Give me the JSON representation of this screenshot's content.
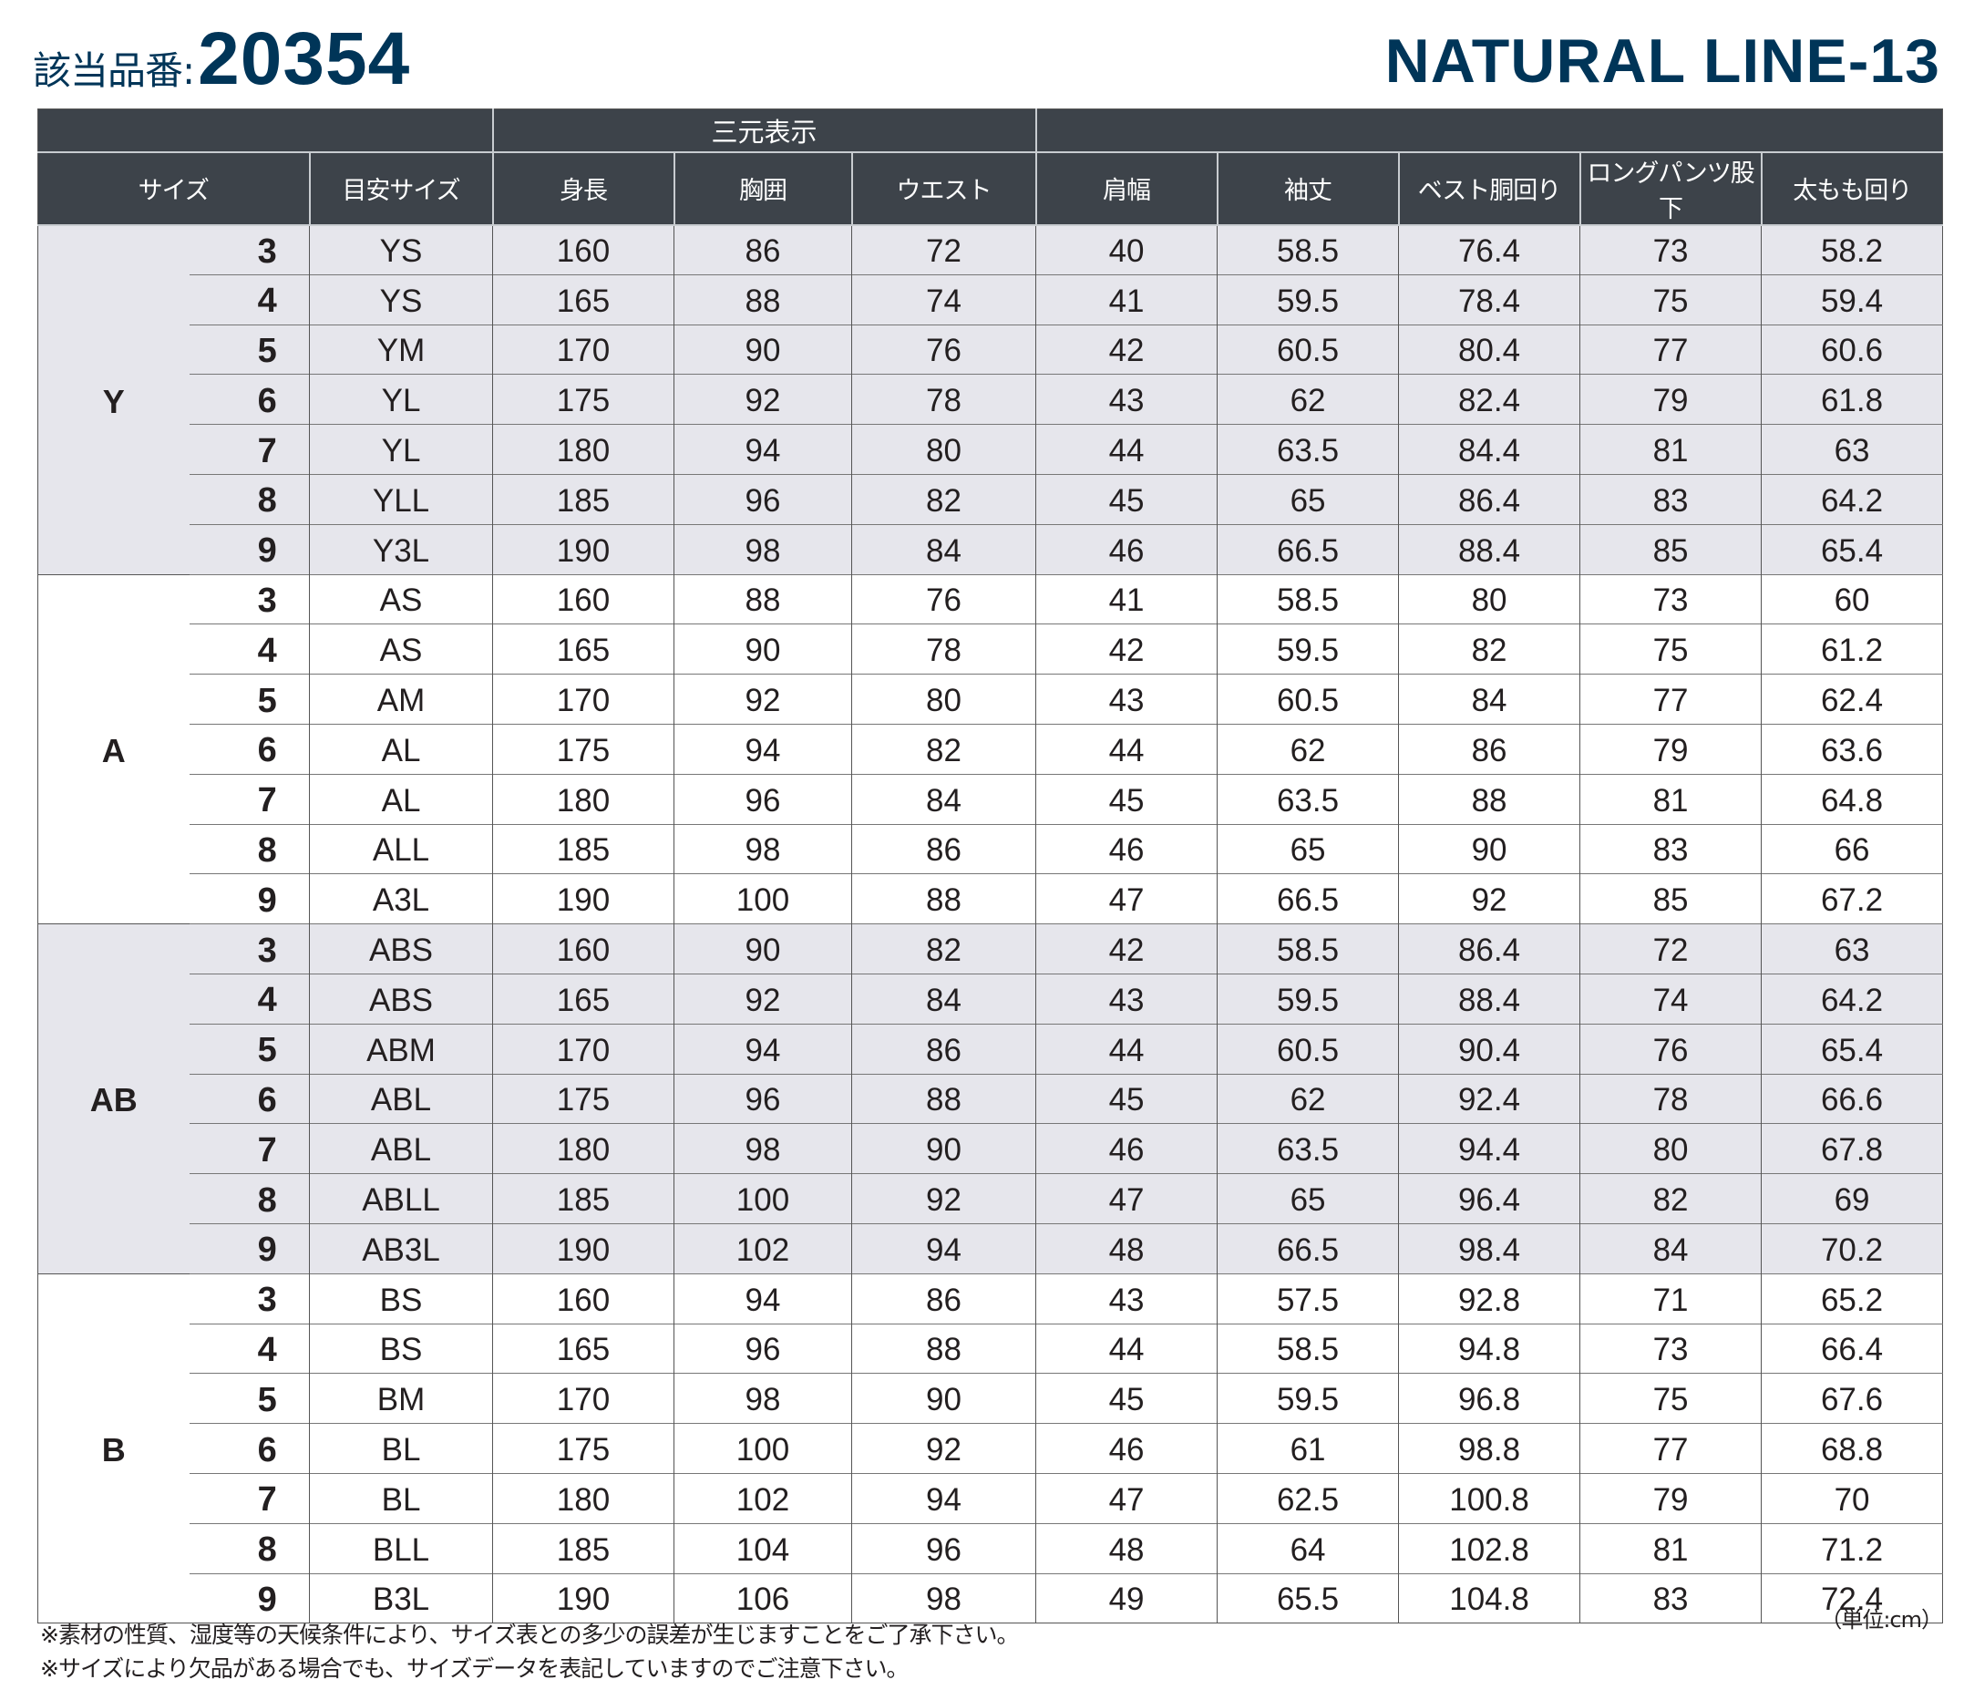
{
  "title": {
    "label": "該当品番:",
    "number": "20354",
    "series": "NATURAL LINE-13"
  },
  "header": {
    "group_3d": "三元表示",
    "columns": [
      "サイズ",
      "目安サイズ",
      "身長",
      "胸囲",
      "ウエスト",
      "肩幅",
      "袖丈",
      "ベスト胴回り",
      "ロングパンツ股下",
      "太もも回り"
    ]
  },
  "groups": [
    {
      "name": "Y",
      "rows": [
        [
          "3",
          "YS",
          "160",
          "86",
          "72",
          "40",
          "58.5",
          "76.4",
          "73",
          "58.2"
        ],
        [
          "4",
          "YS",
          "165",
          "88",
          "74",
          "41",
          "59.5",
          "78.4",
          "75",
          "59.4"
        ],
        [
          "5",
          "YM",
          "170",
          "90",
          "76",
          "42",
          "60.5",
          "80.4",
          "77",
          "60.6"
        ],
        [
          "6",
          "YL",
          "175",
          "92",
          "78",
          "43",
          "62",
          "82.4",
          "79",
          "61.8"
        ],
        [
          "7",
          "YL",
          "180",
          "94",
          "80",
          "44",
          "63.5",
          "84.4",
          "81",
          "63"
        ],
        [
          "8",
          "YLL",
          "185",
          "96",
          "82",
          "45",
          "65",
          "86.4",
          "83",
          "64.2"
        ],
        [
          "9",
          "Y3L",
          "190",
          "98",
          "84",
          "46",
          "66.5",
          "88.4",
          "85",
          "65.4"
        ]
      ]
    },
    {
      "name": "A",
      "rows": [
        [
          "3",
          "AS",
          "160",
          "88",
          "76",
          "41",
          "58.5",
          "80",
          "73",
          "60"
        ],
        [
          "4",
          "AS",
          "165",
          "90",
          "78",
          "42",
          "59.5",
          "82",
          "75",
          "61.2"
        ],
        [
          "5",
          "AM",
          "170",
          "92",
          "80",
          "43",
          "60.5",
          "84",
          "77",
          "62.4"
        ],
        [
          "6",
          "AL",
          "175",
          "94",
          "82",
          "44",
          "62",
          "86",
          "79",
          "63.6"
        ],
        [
          "7",
          "AL",
          "180",
          "96",
          "84",
          "45",
          "63.5",
          "88",
          "81",
          "64.8"
        ],
        [
          "8",
          "ALL",
          "185",
          "98",
          "86",
          "46",
          "65",
          "90",
          "83",
          "66"
        ],
        [
          "9",
          "A3L",
          "190",
          "100",
          "88",
          "47",
          "66.5",
          "92",
          "85",
          "67.2"
        ]
      ]
    },
    {
      "name": "AB",
      "rows": [
        [
          "3",
          "ABS",
          "160",
          "90",
          "82",
          "42",
          "58.5",
          "86.4",
          "72",
          "63"
        ],
        [
          "4",
          "ABS",
          "165",
          "92",
          "84",
          "43",
          "59.5",
          "88.4",
          "74",
          "64.2"
        ],
        [
          "5",
          "ABM",
          "170",
          "94",
          "86",
          "44",
          "60.5",
          "90.4",
          "76",
          "65.4"
        ],
        [
          "6",
          "ABL",
          "175",
          "96",
          "88",
          "45",
          "62",
          "92.4",
          "78",
          "66.6"
        ],
        [
          "7",
          "ABL",
          "180",
          "98",
          "90",
          "46",
          "63.5",
          "94.4",
          "80",
          "67.8"
        ],
        [
          "8",
          "ABLL",
          "185",
          "100",
          "92",
          "47",
          "65",
          "96.4",
          "82",
          "69"
        ],
        [
          "9",
          "AB3L",
          "190",
          "102",
          "94",
          "48",
          "66.5",
          "98.4",
          "84",
          "70.2"
        ]
      ]
    },
    {
      "name": "B",
      "rows": [
        [
          "3",
          "BS",
          "160",
          "94",
          "86",
          "43",
          "57.5",
          "92.8",
          "71",
          "65.2"
        ],
        [
          "4",
          "BS",
          "165",
          "96",
          "88",
          "44",
          "58.5",
          "94.8",
          "73",
          "66.4"
        ],
        [
          "5",
          "BM",
          "170",
          "98",
          "90",
          "45",
          "59.5",
          "96.8",
          "75",
          "67.6"
        ],
        [
          "6",
          "BL",
          "175",
          "100",
          "92",
          "46",
          "61",
          "98.8",
          "77",
          "68.8"
        ],
        [
          "7",
          "BL",
          "180",
          "102",
          "94",
          "47",
          "62.5",
          "100.8",
          "79",
          "70"
        ],
        [
          "8",
          "BLL",
          "185",
          "104",
          "96",
          "48",
          "64",
          "102.8",
          "81",
          "71.2"
        ],
        [
          "9",
          "B3L",
          "190",
          "106",
          "98",
          "49",
          "65.5",
          "104.8",
          "83",
          "72.4"
        ]
      ]
    }
  ],
  "unit": "（単位:cm）",
  "notes": [
    "※素材の性質、湿度等の天候条件により、サイズ表との多少の誤差が生じますことをご了承下さい。",
    "※サイズにより欠品がある場合でも、サイズデータを表記していますのでご注意下さい。"
  ]
}
